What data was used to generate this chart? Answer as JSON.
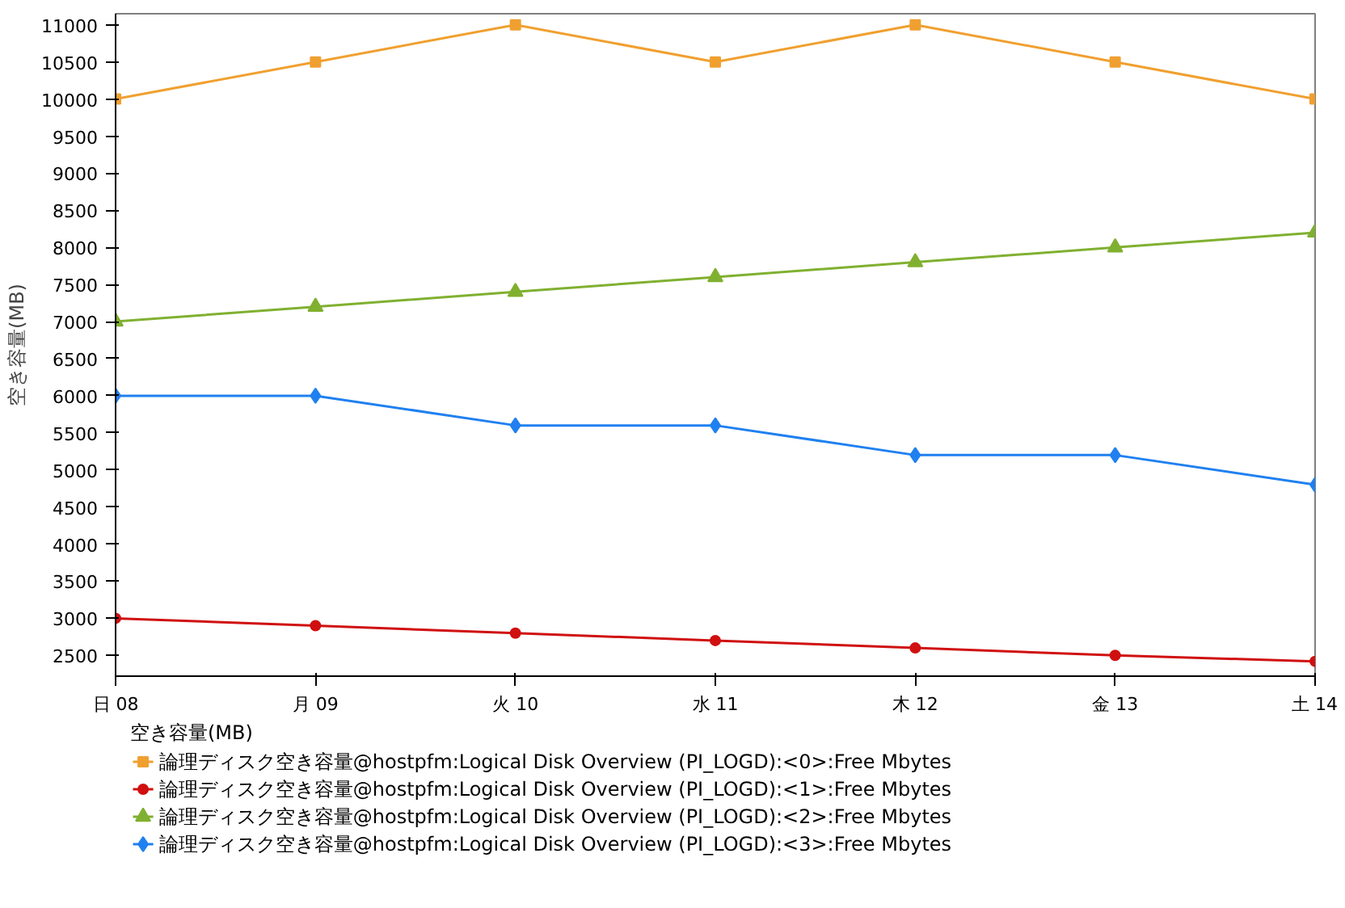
{
  "chart_data": {
    "type": "line",
    "ylabel": "空き容量(MB)",
    "legend_title": "空き容量(MB)",
    "categories": [
      "日 08",
      "月 09",
      "火 10",
      "水 11",
      "木 12",
      "金 13",
      "土 14"
    ],
    "ylim": [
      2220,
      11150
    ],
    "yticks": [
      2500,
      3000,
      3500,
      4000,
      4500,
      5000,
      5500,
      6000,
      6500,
      7000,
      7500,
      8000,
      8500,
      9000,
      9500,
      10000,
      10500,
      11000
    ],
    "grid": false,
    "legend": "bottom",
    "line_style": "solid",
    "series": [
      {
        "name": "論理ディスク空き容量@hostpfm:Logical Disk Overview (PI_LOGD):<0>:Free Mbytes",
        "color": "#f0a030",
        "marker": "square",
        "values": [
          10000,
          10500,
          11000,
          10500,
          11000,
          10500,
          10000
        ]
      },
      {
        "name": "論理ディスク空き容量@hostpfm:Logical Disk Overview (PI_LOGD):<1>:Free Mbytes",
        "color": "#d01010",
        "marker": "circle",
        "values": [
          3000,
          2900,
          2800,
          2700,
          2600,
          2500,
          2420
        ]
      },
      {
        "name": "論理ディスク空き容量@hostpfm:Logical Disk Overview (PI_LOGD):<2>:Free Mbytes",
        "color": "#80b030",
        "marker": "triangle",
        "values": [
          7000,
          7200,
          7400,
          7600,
          7800,
          8000,
          8200
        ]
      },
      {
        "name": "論理ディスク空き容量@hostpfm:Logical Disk Overview (PI_LOGD):<3>:Free Mbytes",
        "color": "#2080f0",
        "marker": "diamond",
        "values": [
          6000,
          6000,
          5600,
          5600,
          5200,
          5200,
          4800
        ]
      }
    ]
  }
}
